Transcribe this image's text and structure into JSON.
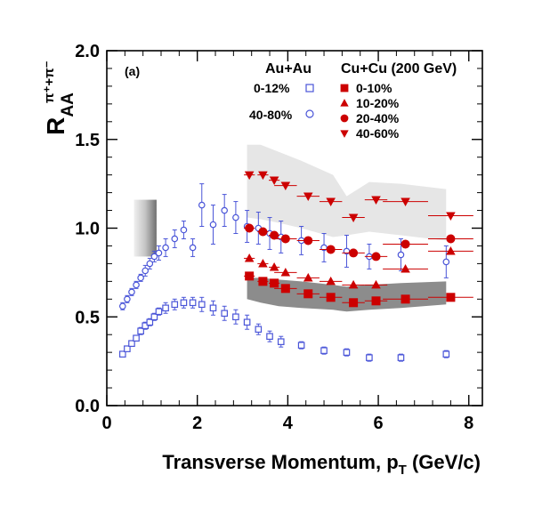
{
  "chart_data": {
    "type": "scatter",
    "panel_label": "(a)",
    "xlabel": "Transverse Momentum, p",
    "xlabel_sub": "T",
    "xlabel_unit": "(GeV/c)",
    "ylabel_main": "R",
    "ylabel_sub": "AA",
    "ylabel_sup": "π⁺+π⁻",
    "xlim": [
      0,
      8.3
    ],
    "ylim": [
      0,
      2.0
    ],
    "x_ticks": [
      0,
      2,
      4,
      6,
      8
    ],
    "x_tick_labels": [
      "0",
      "2",
      "4",
      "6",
      "8"
    ],
    "y_ticks": [
      0,
      0.5,
      1.0,
      1.5,
      2.0
    ],
    "y_tick_labels": [
      "0.0",
      "0.5",
      "1.0",
      "1.5",
      "2.0"
    ],
    "grid": false,
    "legend": {
      "auau_heading": "Au+Au",
      "cucu_heading": "Cu+Cu (200 GeV)",
      "placement": "top-right"
    },
    "colors": {
      "auau": "#4a55d8",
      "cucu": "#cc0000",
      "band_light": "#e6e6e6",
      "band_dark": "#8c8c8c"
    },
    "series": [
      {
        "name": "0-12%",
        "group": "Au+Au",
        "marker": "open-square",
        "x": [
          0.35,
          0.45,
          0.55,
          0.65,
          0.75,
          0.85,
          0.95,
          1.05,
          1.15,
          1.3,
          1.5,
          1.7,
          1.9,
          2.1,
          2.35,
          2.6,
          2.85,
          3.1,
          3.35,
          3.6,
          3.85,
          4.3,
          4.8,
          5.3,
          5.8,
          6.5,
          7.5
        ],
        "y": [
          0.29,
          0.32,
          0.35,
          0.38,
          0.42,
          0.45,
          0.47,
          0.5,
          0.53,
          0.55,
          0.57,
          0.58,
          0.58,
          0.57,
          0.55,
          0.52,
          0.5,
          0.47,
          0.43,
          0.39,
          0.36,
          0.34,
          0.31,
          0.3,
          0.27,
          0.27,
          0.29
        ],
        "err": [
          0.01,
          0.01,
          0.01,
          0.01,
          0.02,
          0.02,
          0.02,
          0.02,
          0.02,
          0.03,
          0.03,
          0.03,
          0.03,
          0.04,
          0.04,
          0.04,
          0.04,
          0.04,
          0.03,
          0.03,
          0.03,
          0.02,
          0.02,
          0.02,
          0.02,
          0.02,
          0.02
        ]
      },
      {
        "name": "40-80%",
        "group": "Au+Au",
        "marker": "open-circle",
        "x": [
          0.35,
          0.45,
          0.55,
          0.65,
          0.75,
          0.85,
          0.95,
          1.05,
          1.15,
          1.3,
          1.5,
          1.7,
          1.9,
          2.1,
          2.35,
          2.6,
          2.85,
          3.1,
          3.35,
          3.6,
          3.85,
          4.3,
          4.8,
          5.3,
          5.8,
          6.5,
          7.5
        ],
        "y": [
          0.56,
          0.6,
          0.64,
          0.68,
          0.72,
          0.76,
          0.8,
          0.84,
          0.86,
          0.89,
          0.94,
          0.99,
          0.89,
          1.13,
          1.02,
          1.1,
          1.06,
          1.01,
          1.0,
          0.97,
          0.95,
          0.93,
          0.89,
          0.87,
          0.84,
          0.85,
          0.81
        ],
        "err": [
          0.02,
          0.02,
          0.02,
          0.02,
          0.02,
          0.03,
          0.03,
          0.03,
          0.04,
          0.05,
          0.05,
          0.05,
          0.05,
          0.12,
          0.11,
          0.09,
          0.09,
          0.09,
          0.09,
          0.09,
          0.09,
          0.08,
          0.08,
          0.09,
          0.07,
          0.09,
          0.09
        ]
      },
      {
        "name": "0-10%",
        "group": "Cu+Cu (200 GeV)",
        "marker": "filled-square",
        "x": [
          3.15,
          3.45,
          3.7,
          3.95,
          4.45,
          4.95,
          5.45,
          5.95,
          6.6,
          7.6
        ],
        "y": [
          0.73,
          0.7,
          0.69,
          0.66,
          0.63,
          0.61,
          0.58,
          0.59,
          0.6,
          0.61
        ],
        "xerr": [
          0.12,
          0.12,
          0.12,
          0.25,
          0.25,
          0.25,
          0.25,
          0.25,
          0.5,
          0.5
        ]
      },
      {
        "name": "10-20%",
        "group": "Cu+Cu (200 GeV)",
        "marker": "filled-triangle-up",
        "x": [
          3.15,
          3.45,
          3.7,
          3.95,
          4.45,
          4.95,
          5.45,
          5.95,
          6.6,
          7.6
        ],
        "y": [
          0.83,
          0.8,
          0.78,
          0.75,
          0.72,
          0.7,
          0.68,
          0.68,
          0.77,
          0.87
        ],
        "xerr": [
          0.12,
          0.12,
          0.12,
          0.25,
          0.25,
          0.25,
          0.25,
          0.25,
          0.5,
          0.5
        ]
      },
      {
        "name": "20-40%",
        "group": "Cu+Cu (200 GeV)",
        "marker": "filled-circle",
        "x": [
          3.15,
          3.45,
          3.7,
          3.95,
          4.45,
          4.95,
          5.45,
          5.95,
          6.6,
          7.6
        ],
        "y": [
          1.0,
          0.98,
          0.96,
          0.94,
          0.93,
          0.88,
          0.86,
          0.84,
          0.91,
          0.94
        ],
        "xerr": [
          0.12,
          0.12,
          0.12,
          0.25,
          0.25,
          0.25,
          0.25,
          0.25,
          0.5,
          0.5
        ]
      },
      {
        "name": "40-60%",
        "group": "Cu+Cu (200 GeV)",
        "marker": "filled-triangle-down",
        "x": [
          3.15,
          3.45,
          3.7,
          3.95,
          4.45,
          4.95,
          5.45,
          5.95,
          6.6,
          7.6
        ],
        "y": [
          1.3,
          1.3,
          1.27,
          1.24,
          1.18,
          1.15,
          1.06,
          1.16,
          1.15,
          1.07
        ],
        "xerr": [
          0.12,
          0.12,
          0.12,
          0.25,
          0.25,
          0.25,
          0.25,
          0.25,
          0.5,
          0.5
        ]
      }
    ],
    "bands": [
      {
        "shade": "light",
        "x": [
          3.1,
          3.4,
          3.8,
          4.3,
          5.0,
          5.3,
          5.8,
          6.5,
          7.5
        ],
        "lower": [
          1.06,
          1.05,
          1.03,
          1.0,
          0.95,
          0.96,
          0.98,
          0.96,
          0.93
        ],
        "upper": [
          1.47,
          1.47,
          1.43,
          1.38,
          1.3,
          1.18,
          1.26,
          1.25,
          1.22
        ]
      },
      {
        "shade": "dark",
        "x": [
          3.1,
          3.4,
          3.8,
          4.3,
          5.0,
          5.3,
          5.8,
          6.5,
          7.5
        ],
        "lower": [
          0.6,
          0.58,
          0.56,
          0.55,
          0.54,
          0.53,
          0.54,
          0.55,
          0.57
        ],
        "upper": [
          0.72,
          0.72,
          0.71,
          0.7,
          0.68,
          0.67,
          0.68,
          0.69,
          0.7
        ]
      }
    ],
    "normalization_box": {
      "x": [
        0.6,
        1.1
      ],
      "y": [
        0.84,
        1.16
      ]
    }
  }
}
